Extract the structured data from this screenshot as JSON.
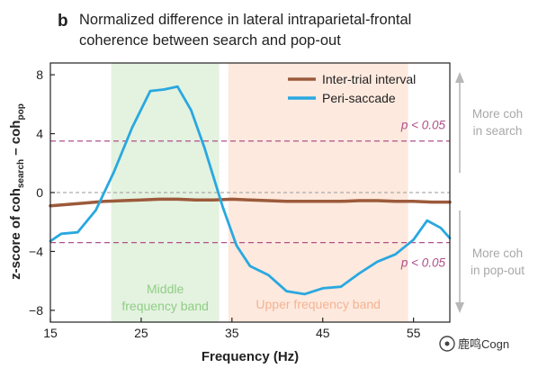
{
  "panel_label": "b",
  "title_line1": "Normalized difference in lateral intraparietal-frontal",
  "title_line2": "coherence between search and pop-out",
  "watermark": "鹿鸣Cogn",
  "colors": {
    "inter_trial": "#9c5a3a",
    "peri_saccade": "#29a8e0",
    "threshold": "#b0508a",
    "middle_band": "#e4f2e0",
    "upper_band": "#fde9de",
    "middle_band_text": "#8fce85",
    "upper_band_text": "#f4b393",
    "side_arrow": "#b8b8b8",
    "side_text": "#a8a8a8",
    "zero_line": "#9a9a9a"
  },
  "chart_data": {
    "type": "line",
    "xlabel": "Frequency (Hz)",
    "ylabel_parts": {
      "pre": "z-score of coh",
      "sub1": "search",
      "mid": " – coh",
      "sub2": "pop"
    },
    "xlim": [
      15,
      59
    ],
    "ylim": [
      -8.8,
      8.8
    ],
    "xticks": [
      15,
      25,
      35,
      45,
      55
    ],
    "yticks": [
      8,
      4,
      0,
      -4,
      -8
    ],
    "ytick_labels": [
      "8",
      "4",
      "0",
      "−4",
      "−8"
    ],
    "grid": false,
    "legend_position": "top-right",
    "bands": [
      {
        "name": "Middle frequency band",
        "lines": [
          "Middle",
          "frequency band"
        ],
        "x": [
          21.7,
          33.6
        ],
        "color_key": "middle_band"
      },
      {
        "name": "Upper frequency band",
        "lines": [
          "Upper frequency band"
        ],
        "x": [
          34.6,
          54.4
        ],
        "color_key": "upper_band"
      }
    ],
    "thresholds": [
      {
        "y": 3.5,
        "label": "p < 0.05"
      },
      {
        "y": -3.4,
        "label": "p < 0.05"
      }
    ],
    "side_annotations": [
      {
        "lines": [
          "More coh",
          "in search"
        ],
        "direction": "up"
      },
      {
        "lines": [
          "More coh",
          "in pop-out"
        ],
        "direction": "down"
      }
    ],
    "series": [
      {
        "name": "Inter-trial interval",
        "color_key": "inter_trial",
        "x": [
          15,
          17,
          19,
          21,
          23,
          25,
          27,
          29,
          31,
          33,
          35,
          37,
          39,
          41,
          43,
          45,
          47,
          49,
          51,
          53,
          55,
          57,
          59
        ],
        "y": [
          -0.9,
          -0.8,
          -0.7,
          -0.6,
          -0.55,
          -0.5,
          -0.45,
          -0.45,
          -0.5,
          -0.5,
          -0.45,
          -0.5,
          -0.55,
          -0.6,
          -0.6,
          -0.6,
          -0.6,
          -0.55,
          -0.55,
          -0.6,
          -0.6,
          -0.65,
          -0.65
        ]
      },
      {
        "name": "Peri-saccade",
        "color_key": "peri_saccade",
        "x": [
          15,
          16.2,
          18,
          20,
          22,
          24,
          26,
          27.5,
          29,
          30.5,
          32,
          34,
          35.5,
          37,
          39,
          41,
          43,
          45,
          47,
          49,
          51,
          53,
          55,
          56.5,
          58,
          59
        ],
        "y": [
          -3.3,
          -2.8,
          -2.7,
          -1.2,
          1.4,
          4.4,
          6.9,
          7.0,
          7.2,
          5.6,
          3.0,
          -1.0,
          -3.6,
          -5.0,
          -5.6,
          -6.7,
          -6.9,
          -6.5,
          -6.4,
          -5.5,
          -4.7,
          -4.2,
          -3.2,
          -1.9,
          -2.4,
          -3.1
        ]
      }
    ]
  }
}
